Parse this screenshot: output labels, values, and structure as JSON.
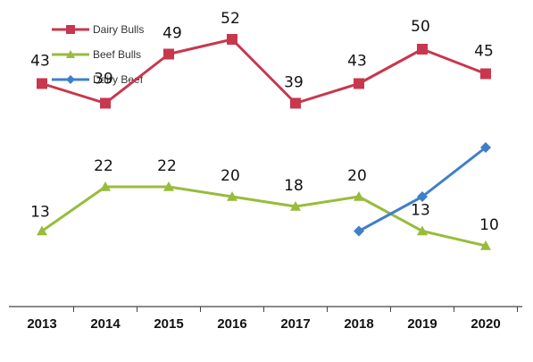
{
  "chart_data": {
    "type": "line",
    "categories": [
      "2013",
      "2014",
      "2015",
      "2016",
      "2017",
      "2018",
      "2019",
      "2020"
    ],
    "series": [
      {
        "name": "Dairy Bulls",
        "color": "#c8374d",
        "marker": "square",
        "values": [
          43,
          39,
          49,
          52,
          39,
          43,
          50,
          45
        ],
        "labels": [
          "43",
          "39",
          "49",
          "52",
          "39",
          "43",
          "50",
          "45"
        ]
      },
      {
        "name": "Beef Bulls",
        "color": "#98bc3b",
        "marker": "triangle",
        "values": [
          13,
          22,
          22,
          20,
          18,
          20,
          13,
          10
        ],
        "labels": [
          "13",
          "22",
          "22",
          "20",
          "18",
          "20",
          "13",
          "10"
        ]
      },
      {
        "name": "Dairy Beef",
        "color": "#3f7fca",
        "marker": "diamond",
        "values": [
          null,
          null,
          null,
          null,
          null,
          13,
          20,
          30
        ],
        "labels": []
      }
    ],
    "title": "",
    "xlabel": "",
    "ylabel": "",
    "ylim": [
      0,
      60
    ],
    "grid": false,
    "legend_position": "top-left"
  }
}
